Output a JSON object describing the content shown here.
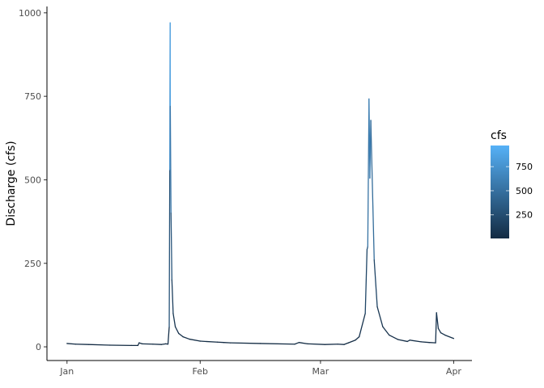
{
  "chart_data": {
    "type": "line",
    "title": "",
    "xlabel": "",
    "ylabel": "Discharge (cfs)",
    "x_ticks": [
      "Jan",
      "Feb",
      "Mar",
      "Apr"
    ],
    "y_ticks": [
      0,
      250,
      500,
      750,
      1000
    ],
    "ylim": [
      -41,
      1019
    ],
    "xlim": [
      "12-27 08:00",
      "04-05 06:00"
    ],
    "grid": false,
    "legend": {
      "title": "cfs",
      "position": "right",
      "type": "colorbar",
      "ticks": [
        250,
        500,
        750
      ],
      "range": [
        4,
        970
      ],
      "low_color": "#132B43",
      "high_color": "#56B1F7"
    },
    "points": [
      [
        "01-01 00:00",
        10
      ],
      [
        "01-03 00:00",
        8
      ],
      [
        "01-06 00:00",
        7
      ],
      [
        "01-11 00:00",
        5
      ],
      [
        "01-16 00:00",
        4
      ],
      [
        "01-17 12:00",
        4
      ],
      [
        "01-17 19:00",
        12
      ],
      [
        "01-18 12:00",
        9
      ],
      [
        "01-21 00:00",
        8
      ],
      [
        "01-23 00:00",
        7
      ],
      [
        "01-24 00:00",
        9
      ],
      [
        "01-24 12:00",
        8
      ],
      [
        "01-24 19:00",
        60
      ],
      [
        "01-24 22:00",
        530
      ],
      [
        "01-25 00:00",
        970
      ],
      [
        "01-25 01:00",
        720
      ],
      [
        "01-25 05:00",
        400
      ],
      [
        "01-25 10:00",
        200
      ],
      [
        "01-25 17:00",
        100
      ],
      [
        "01-26 05:00",
        60
      ],
      [
        "01-27 00:00",
        40
      ],
      [
        "01-28 00:00",
        30
      ],
      [
        "01-29 12:00",
        23
      ],
      [
        "02-01 00:00",
        17
      ],
      [
        "02-05 00:00",
        14
      ],
      [
        "02-06 12:00",
        13
      ],
      [
        "02-08 00:00",
        12
      ],
      [
        "02-15 00:00",
        10
      ],
      [
        "02-23 00:00",
        8
      ],
      [
        "02-24 00:00",
        13
      ],
      [
        "02-26 00:00",
        9
      ],
      [
        "03-02 00:00",
        7
      ],
      [
        "03-05 00:00",
        8
      ],
      [
        "03-06 12:00",
        7
      ],
      [
        "03-07 12:00",
        12
      ],
      [
        "03-09 03:00",
        20
      ],
      [
        "03-10 00:00",
        30
      ],
      [
        "03-11 10:00",
        100
      ],
      [
        "03-11 20:00",
        291
      ],
      [
        "03-12 00:00",
        300
      ],
      [
        "03-12 07:00",
        742
      ],
      [
        "03-12 12:00",
        505
      ],
      [
        "03-12 17:00",
        678
      ],
      [
        "03-13 12:00",
        260
      ],
      [
        "03-14 05:00",
        120
      ],
      [
        "03-15 12:00",
        60
      ],
      [
        "03-17 00:00",
        35
      ],
      [
        "03-19 00:00",
        22
      ],
      [
        "03-21 05:00",
        16
      ],
      [
        "03-21 19:00",
        20
      ],
      [
        "03-24 10:00",
        15
      ],
      [
        "03-26 07:00",
        13
      ],
      [
        "03-27 19:00",
        12
      ],
      [
        "03-28 00:00",
        102
      ],
      [
        "03-28 10:00",
        55
      ],
      [
        "03-29 00:00",
        42
      ],
      [
        "03-30 00:00",
        35
      ],
      [
        "04-01 00:00",
        25
      ]
    ]
  }
}
